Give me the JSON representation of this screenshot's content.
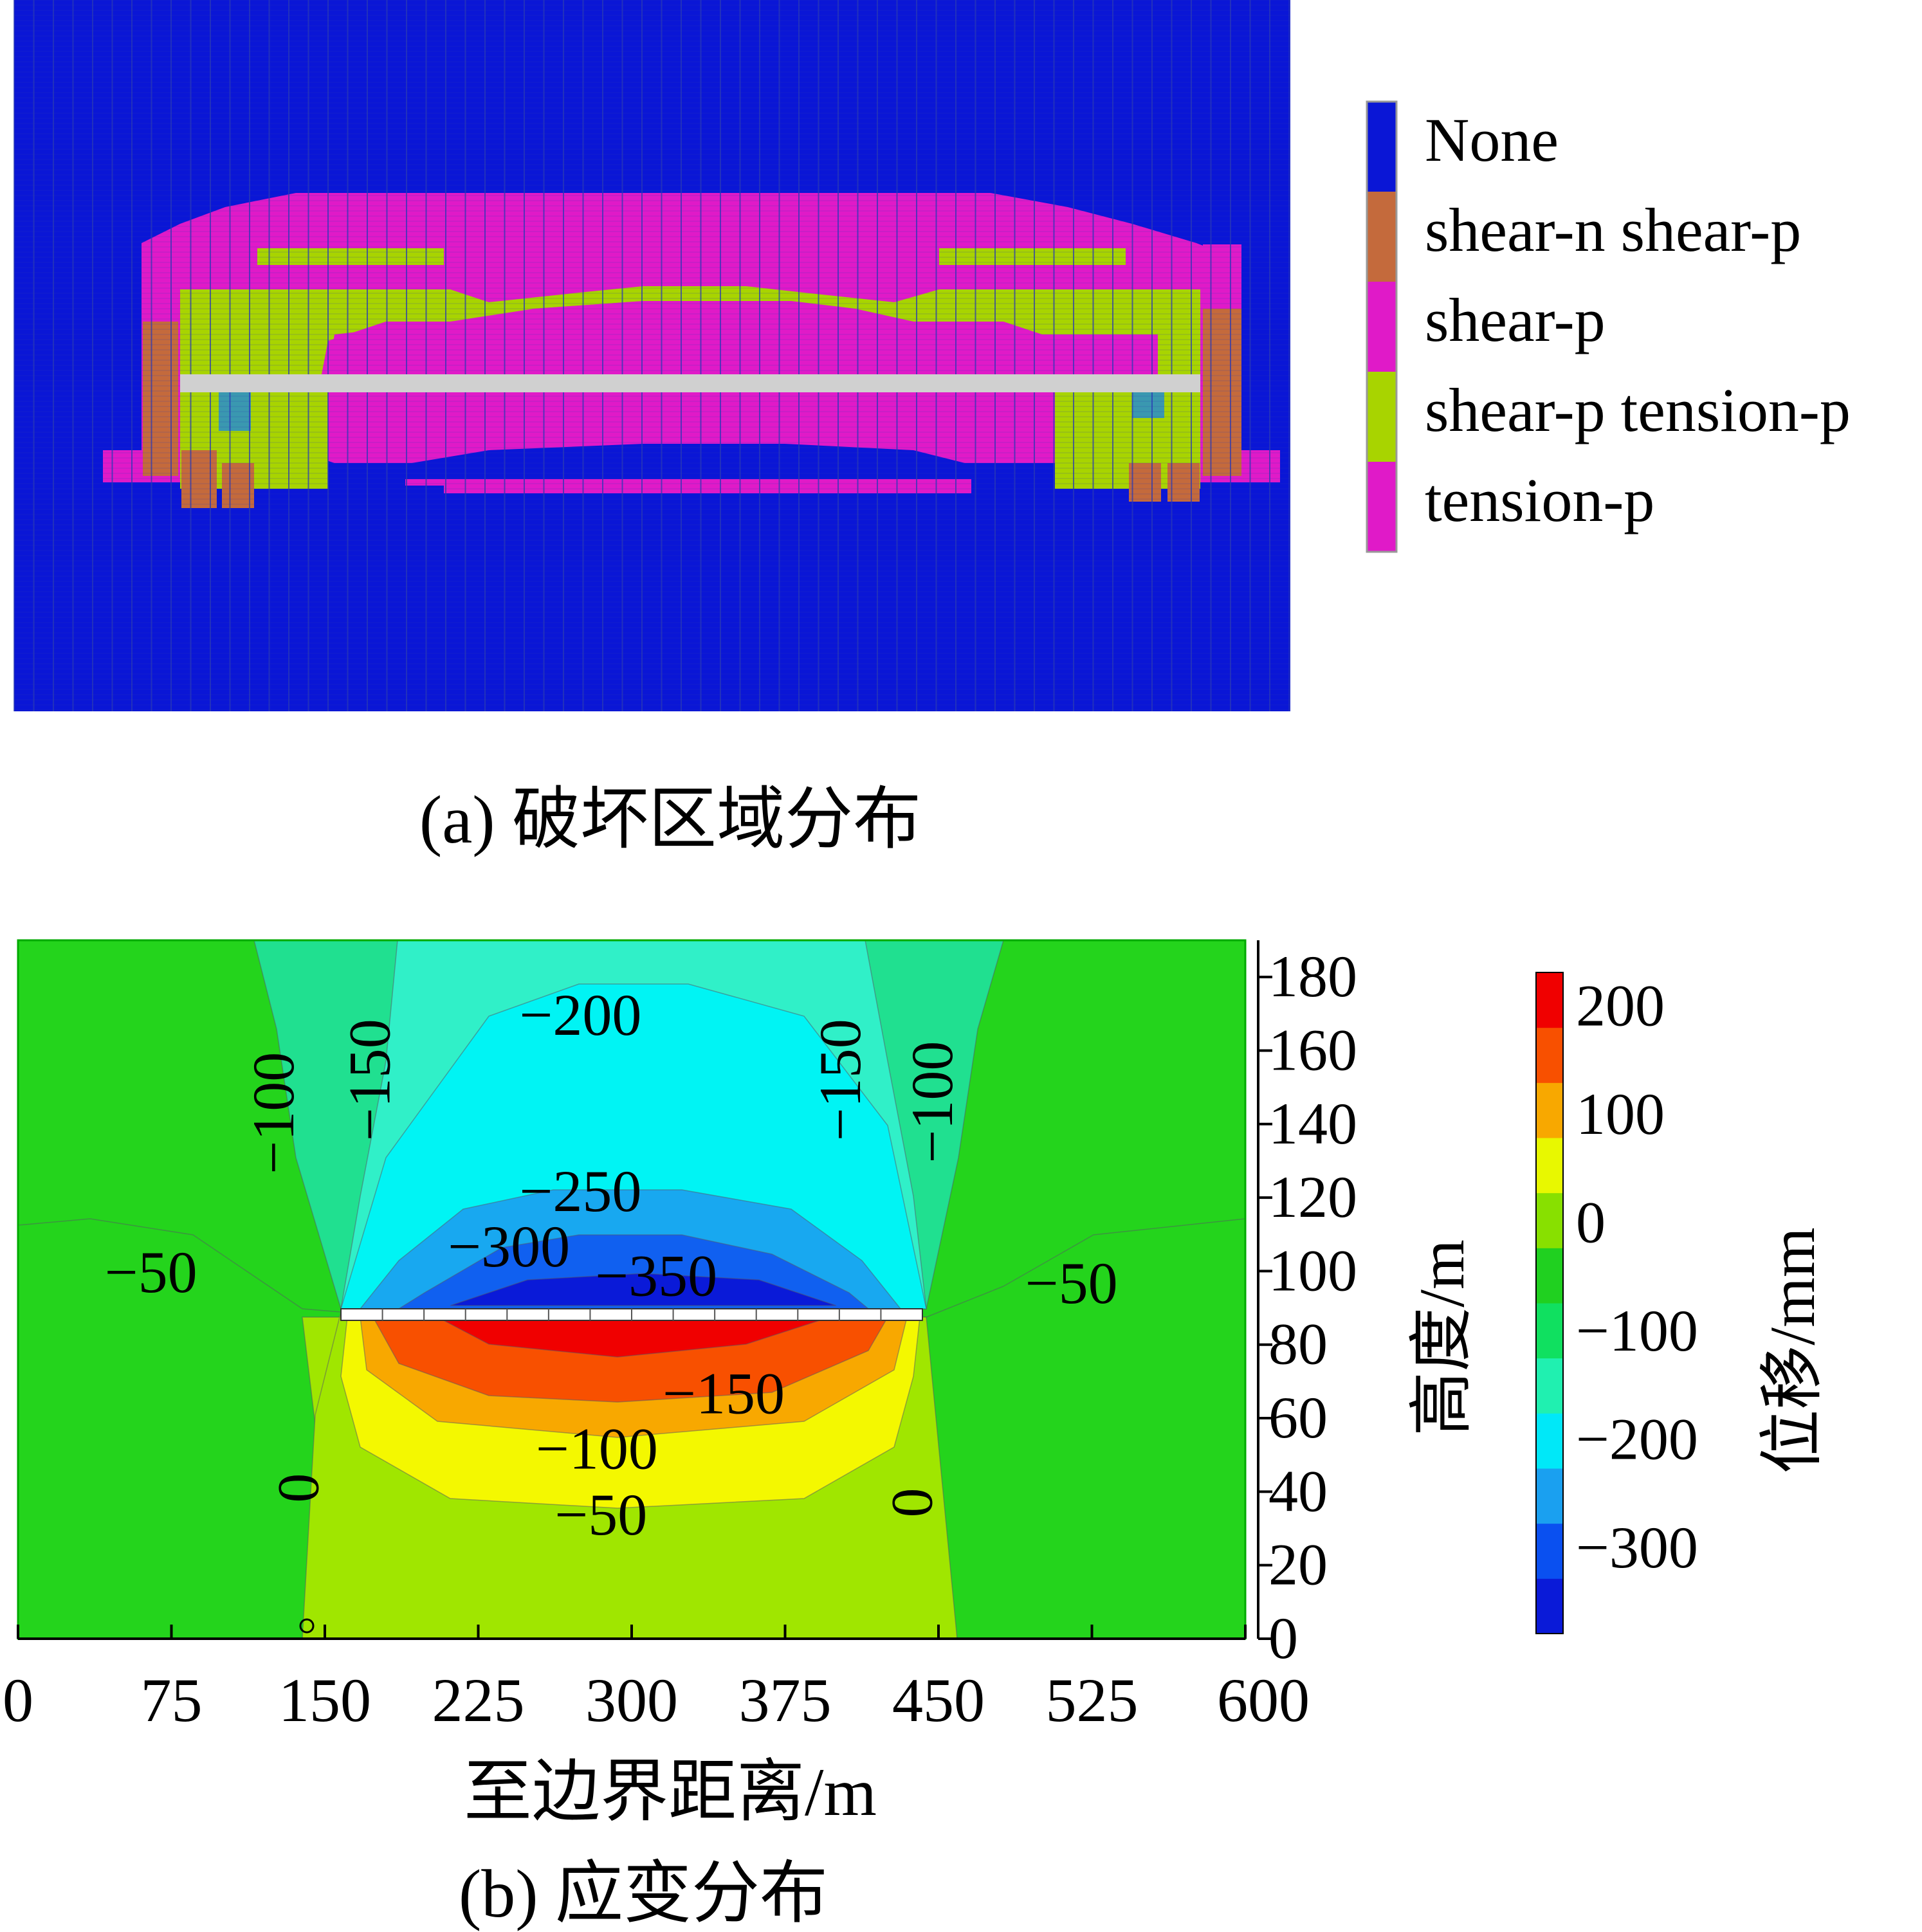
{
  "panel_a": {
    "caption": "(a)  破坏区域分布",
    "legend": [
      {
        "label": "None",
        "color": "#0a16d6"
      },
      {
        "label": "shear-n shear-p",
        "color": "#c46a3c"
      },
      {
        "label": "shear-p",
        "color": "#e01ac8"
      },
      {
        "label": "shear-p tension-p",
        "color": "#a8d400"
      },
      {
        "label": "tension-p",
        "color": "#e01ac8"
      }
    ],
    "colors": {
      "none": "#0a16d6",
      "shear_n_shear_p": "#c46a3c",
      "shear_p": "#e01ac8",
      "shear_p_tension_p": "#a8d400",
      "tension_p": "#e01ac8",
      "grid_line": "#2a3ab4",
      "panel": "#d0d0d0",
      "teal": "#3a98b0"
    }
  },
  "panel_b": {
    "caption": "(b)  应变分布",
    "colorbar_label": "位移/mm",
    "colorbar": {
      "bands": [
        "#0a1ad8",
        "#0a50f0",
        "#1aa0f0",
        "#00e8f8",
        "#20f0b0",
        "#10e060",
        "#20d020",
        "#88e000",
        "#e8f800",
        "#f8a800",
        "#f85000",
        "#f00000"
      ],
      "tick_labels": [
        "200",
        "100",
        "0",
        "−100",
        "−200",
        "−300"
      ],
      "tick_values": [
        200,
        100,
        0,
        -100,
        -200,
        -300
      ],
      "range": [
        -380,
        230
      ]
    },
    "chart_data": {
      "type": "heatmap",
      "title": "",
      "xlabel": "至边界距离/m",
      "ylabel": "高度/m",
      "xlim": [
        0,
        600
      ],
      "ylim": [
        0,
        190
      ],
      "x_ticks": [
        0,
        75,
        150,
        225,
        300,
        375,
        450,
        525,
        600
      ],
      "x_tick_labels": [
        "0",
        "75",
        "150",
        "225",
        "300",
        "375",
        "450",
        "525",
        "600"
      ],
      "y_ticks": [
        0,
        20,
        40,
        60,
        80,
        100,
        120,
        140,
        160,
        180
      ],
      "y_tick_labels": [
        "0",
        "20",
        "40",
        "60",
        "80",
        "100",
        "120",
        "140",
        "160",
        "180"
      ],
      "contour_labels": [
        {
          "text": "−200",
          "x": 275,
          "y": 168
        },
        {
          "text": "−150",
          "x": 175,
          "y": 152,
          "rotate": -90
        },
        {
          "text": "−100",
          "x": 128,
          "y": 143,
          "rotate": -90
        },
        {
          "text": "−150",
          "x": 405,
          "y": 152,
          "rotate": -90
        },
        {
          "text": "−100",
          "x": 450,
          "y": 146,
          "rotate": -90
        },
        {
          "text": "−250",
          "x": 275,
          "y": 120
        },
        {
          "text": "−300",
          "x": 240,
          "y": 105
        },
        {
          "text": "−350",
          "x": 312,
          "y": 97
        },
        {
          "text": "−50",
          "x": 65,
          "y": 98
        },
        {
          "text": "−50",
          "x": 515,
          "y": 95
        },
        {
          "text": "−150",
          "x": 345,
          "y": 65
        },
        {
          "text": "−100",
          "x": 283,
          "y": 50
        },
        {
          "text": "−50",
          "x": 285,
          "y": 32
        },
        {
          "text": "0",
          "x": 140,
          "y": 41,
          "rotate": -90
        },
        {
          "text": "0",
          "x": 440,
          "y": 37,
          "rotate": -90
        }
      ],
      "colors": {
        "field": "#24d41c",
        "lower_field": "#a0e600",
        "band_m100": "#20e090",
        "band_m150": "#30f0c8",
        "band_m200": "#00f4f4",
        "band_m250": "#18a8f0",
        "band_m300": "#1060f0",
        "band_m350": "#0a1ad8",
        "up_150": "#f00000",
        "up_100": "#f85000",
        "up_50": "#f8a800",
        "up_0": "#f4f800",
        "panel": "#ffffff"
      }
    }
  }
}
